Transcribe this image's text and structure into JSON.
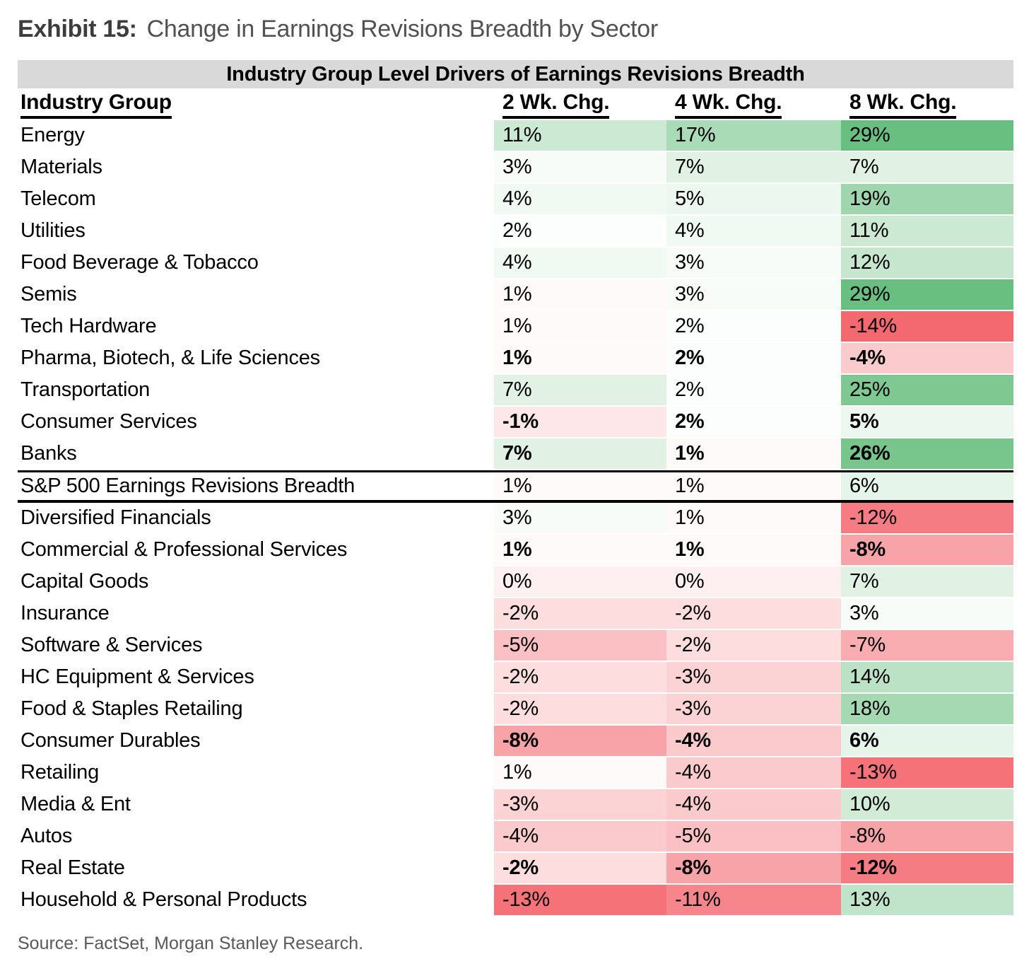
{
  "exhibit": {
    "label": "Exhibit 15:",
    "title": "Change in Earnings Revisions Breadth by Sector"
  },
  "chart_data": {
    "type": "heatmap",
    "title": "Industry Group Level Drivers of Earnings Revisions Breadth",
    "columns": [
      "Industry Group",
      "2 Wk. Chg.",
      "4 Wk. Chg.",
      "8 Wk. Chg."
    ],
    "rows": [
      {
        "label": "Energy",
        "values": [
          "11%",
          "17%",
          "29%"
        ]
      },
      {
        "label": "Materials",
        "values": [
          "3%",
          "7%",
          "7%"
        ]
      },
      {
        "label": "Telecom",
        "values": [
          "4%",
          "5%",
          "19%"
        ]
      },
      {
        "label": "Utilities",
        "values": [
          "2%",
          "4%",
          "11%"
        ]
      },
      {
        "label": "Food Beverage & Tobacco",
        "values": [
          "4%",
          "3%",
          "12%"
        ]
      },
      {
        "label": "Semis",
        "values": [
          "1%",
          "3%",
          "29%"
        ]
      },
      {
        "label": "Tech Hardware",
        "values": [
          "1%",
          "2%",
          "-14%"
        ]
      },
      {
        "label": "Pharma, Biotech, & Life Sciences",
        "values": [
          "1%",
          "2%",
          "-4%"
        ],
        "bold": true
      },
      {
        "label": "Transportation",
        "values": [
          "7%",
          "2%",
          "25%"
        ]
      },
      {
        "label": "Consumer Services",
        "values": [
          "-1%",
          "2%",
          "5%"
        ],
        "bold": true
      },
      {
        "label": "Banks",
        "values": [
          "7%",
          "1%",
          "26%"
        ],
        "bold": true
      },
      {
        "label": "S&P 500 Earnings Revisions Breadth",
        "values": [
          "1%",
          "1%",
          "6%"
        ],
        "divider": true
      },
      {
        "label": "Diversified Financials",
        "values": [
          "3%",
          "1%",
          "-12%"
        ]
      },
      {
        "label": "Commercial & Professional Services",
        "values": [
          "1%",
          "1%",
          "-8%"
        ],
        "bold": true
      },
      {
        "label": "Capital Goods",
        "values": [
          "0%",
          "0%",
          "7%"
        ]
      },
      {
        "label": "Insurance",
        "values": [
          "-2%",
          "-2%",
          "3%"
        ]
      },
      {
        "label": "Software & Services",
        "values": [
          "-5%",
          "-2%",
          "-7%"
        ]
      },
      {
        "label": "HC Equipment & Services",
        "values": [
          "-2%",
          "-3%",
          "14%"
        ]
      },
      {
        "label": "Food & Staples Retailing",
        "values": [
          "-2%",
          "-3%",
          "18%"
        ]
      },
      {
        "label": "Consumer Durables",
        "values": [
          "-8%",
          "-4%",
          "6%"
        ],
        "bold": true
      },
      {
        "label": "Retailing",
        "values": [
          "1%",
          "-4%",
          "-13%"
        ]
      },
      {
        "label": "Media & Ent",
        "values": [
          "-3%",
          "-4%",
          "10%"
        ]
      },
      {
        "label": "Autos",
        "values": [
          "-4%",
          "-5%",
          "-8%"
        ]
      },
      {
        "label": "Real Estate",
        "values": [
          "-2%",
          "-8%",
          "-12%"
        ],
        "bold": true
      },
      {
        "label": "Household & Personal Products",
        "values": [
          "-13%",
          "-11%",
          "13%"
        ]
      }
    ],
    "colorscale": {
      "positive_color": "#69bf7f",
      "negative_color": "#f4696f",
      "neutral_color": "#ffffff",
      "midpoint": 1.5,
      "green_max": 29,
      "red_min": -14
    },
    "banner_bg": "#d9d9d9"
  },
  "source": "Source: FactSet, Morgan Stanley Research."
}
